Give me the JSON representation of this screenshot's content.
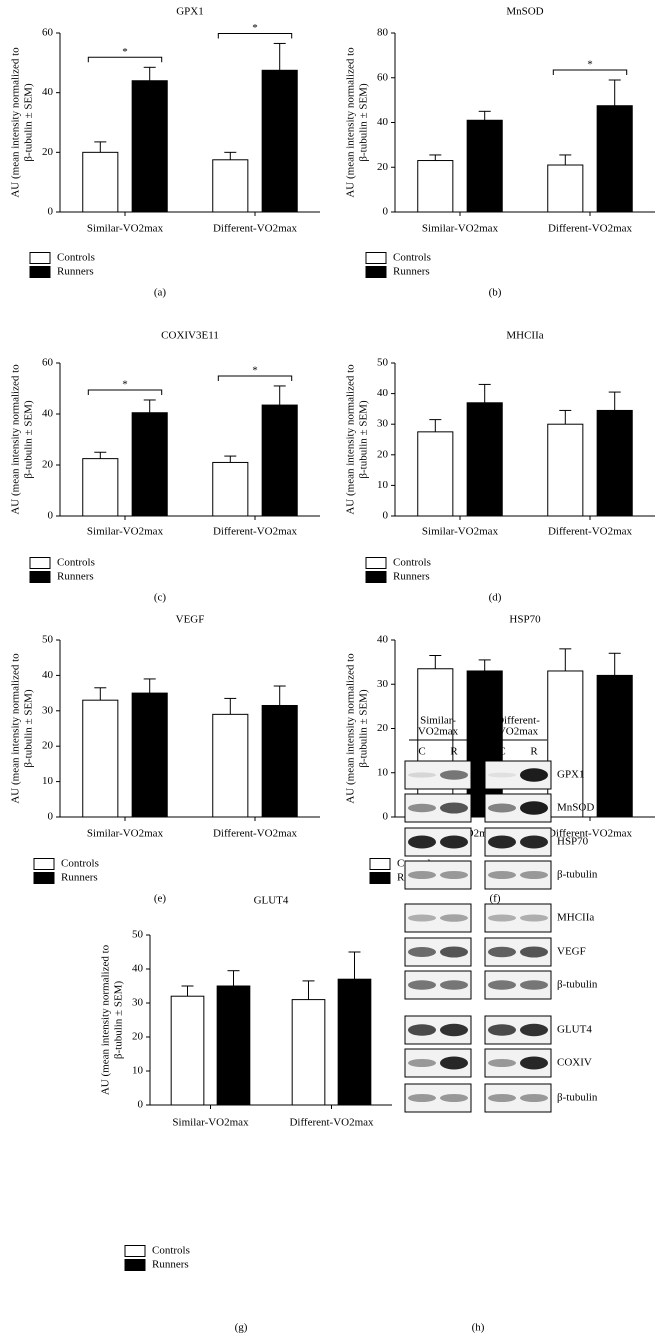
{
  "chart_data": [
    {
      "type": "bar",
      "title": "GPX1",
      "y_label": [
        "AU (mean intensity normalized to",
        "β-tubulin ± SEM)"
      ],
      "categories": [
        "Similar-VO2max",
        "Different-VO2max"
      ],
      "series": [
        {
          "name": "Controls",
          "color": "#ffffff",
          "values": [
            20,
            17.5
          ],
          "errors": [
            3.5,
            2.5
          ]
        },
        {
          "name": "Runners",
          "color": "#000000",
          "values": [
            44,
            47.5
          ],
          "errors": [
            4.5,
            9
          ]
        }
      ],
      "ylim": [
        0,
        60
      ],
      "yticks": [
        0,
        20,
        40,
        60
      ],
      "significance": [
        "*",
        "*"
      ],
      "label": "(a)"
    },
    {
      "type": "bar",
      "title": "MnSOD",
      "y_label": [
        "AU (mean intensity normalized to",
        "β-tubulin ± SEM)"
      ],
      "categories": [
        "Similar-VO2max",
        "Different-VO2max"
      ],
      "series": [
        {
          "name": "Controls",
          "color": "#ffffff",
          "values": [
            23,
            21
          ],
          "errors": [
            2.5,
            4.5
          ]
        },
        {
          "name": "Runners",
          "color": "#000000",
          "values": [
            41,
            47.5
          ],
          "errors": [
            4,
            11.5
          ]
        }
      ],
      "ylim": [
        0,
        80
      ],
      "yticks": [
        0,
        20,
        40,
        60,
        80
      ],
      "significance": [
        null,
        "*"
      ],
      "label": "(b)"
    },
    {
      "type": "bar",
      "title": "COXIV3E11",
      "y_label": [
        "AU (mean intensity normalized to",
        "β-tubulin ± SEM)"
      ],
      "categories": [
        "Similar-VO2max",
        "Different-VO2max"
      ],
      "series": [
        {
          "name": "Controls",
          "color": "#ffffff",
          "values": [
            22.5,
            21
          ],
          "errors": [
            2.5,
            2.5
          ]
        },
        {
          "name": "Runners",
          "color": "#000000",
          "values": [
            40.5,
            43.5
          ],
          "errors": [
            5,
            7.5
          ]
        }
      ],
      "ylim": [
        0,
        60
      ],
      "yticks": [
        0,
        20,
        40,
        60
      ],
      "significance": [
        "*",
        "*"
      ],
      "label": "(c)"
    },
    {
      "type": "bar",
      "title": "MHCIIa",
      "y_label": [
        "AU (mean intensity normalized to",
        "β-tubulin ± SEM)"
      ],
      "categories": [
        "Similar-VO2max",
        "Different-VO2max"
      ],
      "series": [
        {
          "name": "Controls",
          "color": "#ffffff",
          "values": [
            27.5,
            30
          ],
          "errors": [
            4,
            4.5
          ]
        },
        {
          "name": "Runners",
          "color": "#000000",
          "values": [
            37,
            34.5
          ],
          "errors": [
            6,
            6
          ]
        }
      ],
      "ylim": [
        0,
        50
      ],
      "yticks": [
        0,
        10,
        20,
        30,
        40,
        50
      ],
      "label": "(d)"
    },
    {
      "type": "bar",
      "title": "VEGF",
      "y_label": [
        "AU (mean intensity normalized to",
        "β-tubulin ± SEM)"
      ],
      "categories": [
        "Similar-VO2max",
        "Different-VO2max"
      ],
      "series": [
        {
          "name": "Controls",
          "color": "#ffffff",
          "values": [
            33,
            29
          ],
          "errors": [
            3.5,
            4.5
          ]
        },
        {
          "name": "Runners",
          "color": "#000000",
          "values": [
            35,
            31.5
          ],
          "errors": [
            4,
            5.5
          ]
        }
      ],
      "ylim": [
        0,
        50
      ],
      "yticks": [
        0,
        10,
        20,
        30,
        40,
        50
      ],
      "label": "(e)"
    },
    {
      "type": "bar",
      "title": "HSP70",
      "y_label": [
        "AU (mean intensity normalized to",
        "β-tubulin ± SEM)"
      ],
      "categories": [
        "Similar-VO2max",
        "Different-VO2max"
      ],
      "series": [
        {
          "name": "Controls",
          "color": "#ffffff",
          "values": [
            33.5,
            33
          ],
          "errors": [
            3,
            5
          ]
        },
        {
          "name": "Runners",
          "color": "#000000",
          "values": [
            33,
            32
          ],
          "errors": [
            2.5,
            5
          ]
        }
      ],
      "ylim": [
        0,
        40
      ],
      "yticks": [
        0,
        10,
        20,
        30,
        40
      ],
      "label": "(f)"
    },
    {
      "type": "bar",
      "title": "GLUT4",
      "y_label": [
        "AU (mean intensity normalized to",
        "β-tubulin ± SEM)"
      ],
      "categories": [
        "Similar-VO2max",
        "Different-VO2max"
      ],
      "series": [
        {
          "name": "Controls",
          "color": "#ffffff",
          "values": [
            32,
            31
          ],
          "errors": [
            3,
            5.5
          ]
        },
        {
          "name": "Runners",
          "color": "#000000",
          "values": [
            35,
            37
          ],
          "errors": [
            4.5,
            8
          ]
        }
      ],
      "ylim": [
        0,
        50
      ],
      "yticks": [
        0,
        10,
        20,
        30,
        40,
        50
      ],
      "label": "(g)"
    }
  ],
  "blot": {
    "groups": [
      [
        "Similar-",
        "VO2max"
      ],
      [
        "Different-",
        "VO2max"
      ]
    ],
    "lanes": [
      "C",
      "R"
    ],
    "rows": [
      "GPX1",
      "MnSOD",
      "HSP70",
      "β-tubulin",
      "MHCIIa",
      "VEGF",
      "β-tubulin",
      "GLUT4",
      "COXIV",
      "β-tubulin"
    ],
    "label": "(h)"
  }
}
